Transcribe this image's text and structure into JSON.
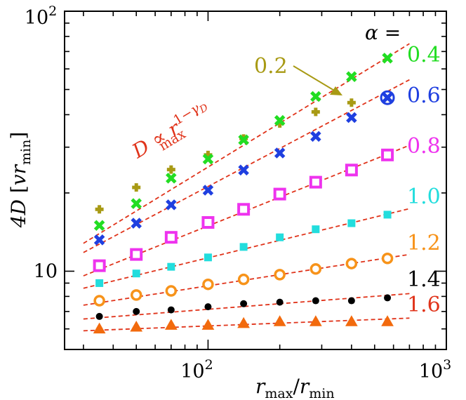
{
  "chart_data": {
    "type": "scatter",
    "xscale": "log",
    "yscale": "log",
    "xlim": [
      25,
      1000
    ],
    "ylim": [
      5,
      100
    ],
    "xticks": [
      {
        "value": 100,
        "label_base": "10",
        "label_exp": "2"
      },
      {
        "value": 1000,
        "label_base": "10",
        "label_exp": "3"
      }
    ],
    "yticks": [
      {
        "value": 10,
        "label": "10"
      },
      {
        "value": 100,
        "label_base": "10",
        "label_exp": "2"
      }
    ],
    "xlabel": "r_max/r_min",
    "ylabel": "4D [vr_min]",
    "legend_title": "α =",
    "fit_annotation": "D ∝ r_max^(1−γ_D)",
    "arrow_annotation": "0.2",
    "series": [
      {
        "name": "0.2",
        "color": "#a89a14",
        "marker": "plus",
        "x": [
          35,
          50,
          70,
          100,
          141,
          200,
          283,
          400
        ],
        "y": [
          17.3,
          21.0,
          24.6,
          28.0,
          32.4,
          37.0,
          41.0,
          44.5
        ]
      },
      {
        "name": "0.4",
        "color": "#22dd22",
        "marker": "cross",
        "x": [
          35,
          50,
          70,
          100,
          141,
          200,
          283,
          400,
          566
        ],
        "y": [
          15.0,
          18.2,
          22.8,
          27.0,
          32.0,
          38.0,
          47.0,
          56.0,
          66.0
        ]
      },
      {
        "name": "0.6",
        "color": "#1f3fe0",
        "marker": "cross",
        "x": [
          35,
          50,
          70,
          100,
          141,
          200,
          283,
          400,
          566
        ],
        "y": [
          13.2,
          15.3,
          18.0,
          20.5,
          24.5,
          28.5,
          33.0,
          39.0,
          46.5
        ]
      },
      {
        "name": "0.8",
        "color": "#ee33ee",
        "marker": "square",
        "x": [
          35,
          50,
          70,
          100,
          141,
          200,
          283,
          400,
          566
        ],
        "y": [
          10.5,
          11.6,
          13.5,
          15.4,
          17.3,
          19.8,
          22.0,
          24.5,
          28.0
        ]
      },
      {
        "name": "1.0",
        "color": "#22dddd",
        "marker": "smallsquare",
        "x": [
          35,
          50,
          70,
          100,
          141,
          200,
          283,
          400,
          566
        ],
        "y": [
          9.0,
          9.8,
          10.4,
          11.3,
          12.4,
          13.5,
          14.5,
          15.3,
          16.5
        ]
      },
      {
        "name": "1.2",
        "color": "#f7931a",
        "marker": "circle",
        "x": [
          35,
          50,
          70,
          100,
          141,
          200,
          283,
          400,
          566
        ],
        "y": [
          7.7,
          8.1,
          8.4,
          8.9,
          9.3,
          9.7,
          10.2,
          10.7,
          11.2
        ]
      },
      {
        "name": "1.4",
        "color": "#000000",
        "marker": "dot",
        "x": [
          35,
          50,
          70,
          100,
          141,
          200,
          283,
          400,
          566
        ],
        "y": [
          6.7,
          7.0,
          7.1,
          7.3,
          7.5,
          7.6,
          7.7,
          7.7,
          7.9
        ]
      },
      {
        "name": "1.6",
        "color": "#f26a0d",
        "marker": "triangle",
        "x": [
          35,
          50,
          70,
          100,
          141,
          200,
          283,
          400,
          566
        ],
        "y": [
          6.0,
          6.1,
          6.2,
          6.2,
          6.3,
          6.4,
          6.4,
          6.4,
          6.4
        ]
      }
    ],
    "fits": [
      {
        "series": "0.4",
        "y_at_30": 12.8,
        "y_at_700": 75.0
      },
      {
        "series": "0.6",
        "y_at_30": 11.8,
        "y_at_700": 54.5
      },
      {
        "series": "0.8",
        "y_at_30": 9.6,
        "y_at_700": 30.5
      },
      {
        "series": "1.0",
        "y_at_30": 8.6,
        "y_at_700": 17.4
      },
      {
        "series": "1.2",
        "y_at_30": 7.4,
        "y_at_700": 11.6
      },
      {
        "series": "1.4",
        "y_at_30": 6.55,
        "y_at_700": 8.2
      },
      {
        "series": "1.6",
        "y_at_30": 5.9,
        "y_at_700": 6.6
      }
    ],
    "fit_color": "#e0331a",
    "legend_placement": "right",
    "grid": false
  }
}
